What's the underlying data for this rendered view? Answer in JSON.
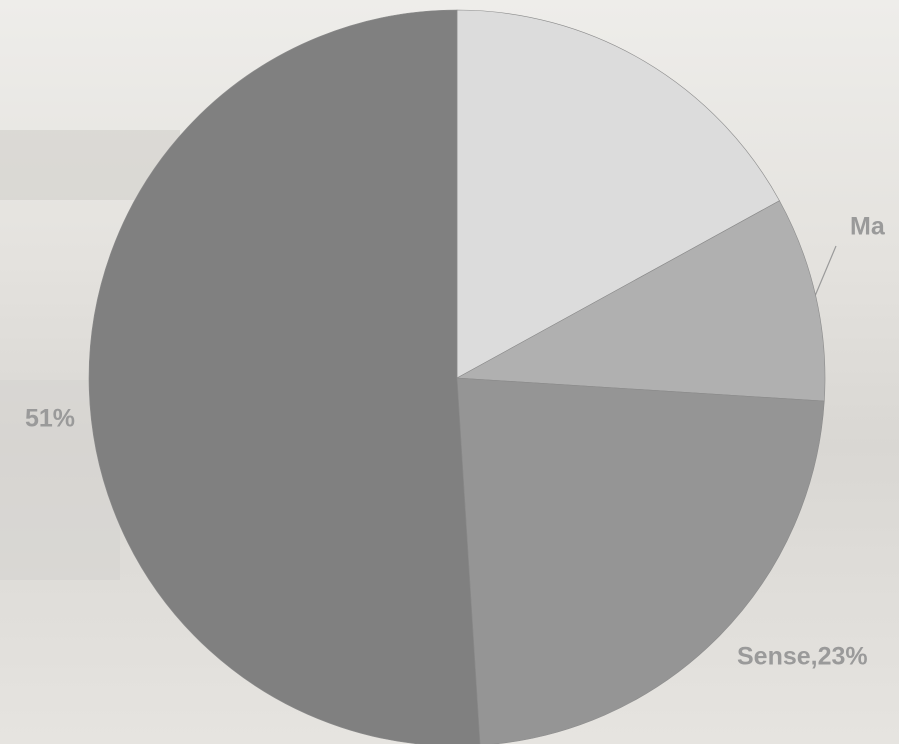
{
  "chart_data": {
    "type": "pie",
    "values": [
      17,
      9,
      23,
      51
    ],
    "value_labels": [
      null,
      "Ma",
      "Sense,23%",
      "51%"
    ],
    "colors": [
      "#dcdcdc",
      "#b0b0b0",
      "#959595",
      "#808080"
    ]
  }
}
